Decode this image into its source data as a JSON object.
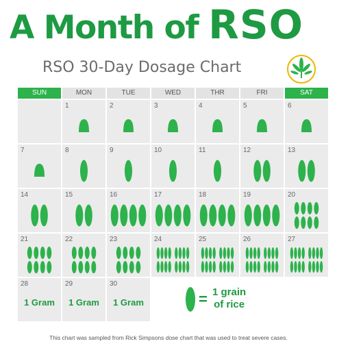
{
  "header": {
    "title_small": "A Month of",
    "title_big": "RSO"
  },
  "subtitle": "RSO 30-Day Dosage Chart",
  "logo": {
    "icon": "cannabis-leaf-icon",
    "color": "#2db24c"
  },
  "days": [
    "SUN",
    "MON",
    "TUE",
    "WED",
    "THR",
    "FRI",
    "SAT"
  ],
  "colors": {
    "green": "#1e9a43",
    "header_weekend": "#2db24c",
    "cell": "#ebebeb"
  },
  "calendar": [
    {
      "day": "",
      "dose": "none"
    },
    {
      "day": "1",
      "dose": "half",
      "count": 1
    },
    {
      "day": "2",
      "dose": "half",
      "count": 1
    },
    {
      "day": "3",
      "dose": "half",
      "count": 1
    },
    {
      "day": "4",
      "dose": "half",
      "count": 1
    },
    {
      "day": "5",
      "dose": "half",
      "count": 1
    },
    {
      "day": "6",
      "dose": "half",
      "count": 1
    },
    {
      "day": "7",
      "dose": "half",
      "count": 1
    },
    {
      "day": "8",
      "dose": "grain",
      "count": 1
    },
    {
      "day": "9",
      "dose": "grain",
      "count": 1
    },
    {
      "day": "10",
      "dose": "grain",
      "count": 1
    },
    {
      "day": "11",
      "dose": "grain",
      "count": 1
    },
    {
      "day": "12",
      "dose": "grain",
      "count": 2
    },
    {
      "day": "13",
      "dose": "grain",
      "count": 2
    },
    {
      "day": "14",
      "dose": "grain",
      "count": 2
    },
    {
      "day": "15",
      "dose": "grain",
      "count": 2
    },
    {
      "day": "16",
      "dose": "grain",
      "count": 4
    },
    {
      "day": "17",
      "dose": "grain",
      "count": 4
    },
    {
      "day": "18",
      "dose": "grain",
      "count": 4
    },
    {
      "day": "19",
      "dose": "grain",
      "count": 4
    },
    {
      "day": "20",
      "dose": "grain",
      "count": 8
    },
    {
      "day": "21",
      "dose": "grain",
      "count": 8
    },
    {
      "day": "22",
      "dose": "grain",
      "count": 8
    },
    {
      "day": "23",
      "dose": "grain",
      "count": 8
    },
    {
      "day": "24",
      "dose": "grain",
      "count": 16
    },
    {
      "day": "25",
      "dose": "grain",
      "count": 16
    },
    {
      "day": "26",
      "dose": "grain",
      "count": 16
    },
    {
      "day": "27",
      "dose": "grain",
      "count": 16
    },
    {
      "day": "28",
      "dose": "gram",
      "label": "1 Gram"
    },
    {
      "day": "29",
      "dose": "gram",
      "label": "1 Gram"
    },
    {
      "day": "30",
      "dose": "gram",
      "label": "1 Gram"
    },
    {
      "day": "",
      "dose": "blank"
    },
    {
      "day": "",
      "dose": "blank"
    },
    {
      "day": "",
      "dose": "blank"
    },
    {
      "day": "",
      "dose": "blank"
    }
  ],
  "legend": {
    "equals": "=",
    "line1": "1 grain",
    "line2": "of rice",
    "icon": "rice-grain-icon"
  },
  "footer": "This chart was sampled from Rick Simpsons dose chart that was used to treat severe cases."
}
